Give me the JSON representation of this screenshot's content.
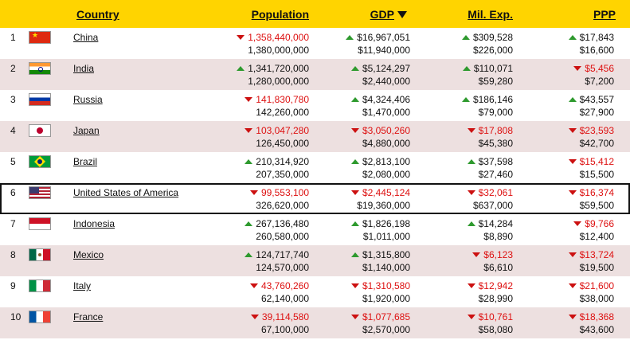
{
  "header": {
    "country": "Country",
    "population": "Population",
    "gdp": "GDP",
    "mil_exp": "Mil. Exp.",
    "ppp": "PPP"
  },
  "colors": {
    "header_bg": "#ffd400",
    "alt_row_bg": "#ede0e0",
    "up_arrow": "#2e9a2e",
    "down_value": "#dd1111"
  },
  "rows": [
    {
      "rank": "1",
      "flag": "china-flag-icon",
      "name": "China",
      "pop": {
        "dir": "down",
        "top": "1,358,440,000",
        "bottom": "1,380,000,000"
      },
      "gdp": {
        "dir": "up",
        "top": "$16,967,051",
        "bottom": "$11,940,000"
      },
      "mil": {
        "dir": "up",
        "top": "$309,528",
        "bottom": "$226,000"
      },
      "ppp": {
        "dir": "up",
        "top": "$17,843",
        "bottom": "$16,600"
      }
    },
    {
      "rank": "2",
      "flag": "india-flag-icon",
      "name": "India",
      "pop": {
        "dir": "up",
        "top": "1,341,720,000",
        "bottom": "1,280,000,000"
      },
      "gdp": {
        "dir": "up",
        "top": "$5,124,297",
        "bottom": "$2,440,000"
      },
      "mil": {
        "dir": "up",
        "top": "$110,071",
        "bottom": "$59,280"
      },
      "ppp": {
        "dir": "down",
        "top": "$5,456",
        "bottom": "$7,200"
      }
    },
    {
      "rank": "3",
      "flag": "russia-flag-icon",
      "name": "Russia",
      "pop": {
        "dir": "down",
        "top": "141,830,780",
        "bottom": "142,260,000"
      },
      "gdp": {
        "dir": "up",
        "top": "$4,324,406",
        "bottom": "$1,470,000"
      },
      "mil": {
        "dir": "up",
        "top": "$186,146",
        "bottom": "$79,000"
      },
      "ppp": {
        "dir": "up",
        "top": "$43,557",
        "bottom": "$27,900"
      }
    },
    {
      "rank": "4",
      "flag": "japan-flag-icon",
      "name": "Japan",
      "pop": {
        "dir": "down",
        "top": "103,047,280",
        "bottom": "126,450,000"
      },
      "gdp": {
        "dir": "down",
        "top": "$3,050,260",
        "bottom": "$4,880,000"
      },
      "mil": {
        "dir": "down",
        "top": "$17,808",
        "bottom": "$45,380"
      },
      "ppp": {
        "dir": "down",
        "top": "$23,593",
        "bottom": "$42,700"
      }
    },
    {
      "rank": "5",
      "flag": "brazil-flag-icon",
      "name": "Brazil",
      "pop": {
        "dir": "up",
        "top": "210,314,920",
        "bottom": "207,350,000"
      },
      "gdp": {
        "dir": "up",
        "top": "$2,813,100",
        "bottom": "$2,080,000"
      },
      "mil": {
        "dir": "up",
        "top": "$37,598",
        "bottom": "$27,460"
      },
      "ppp": {
        "dir": "down",
        "top": "$15,412",
        "bottom": "$15,500"
      }
    },
    {
      "rank": "6",
      "flag": "usa-flag-icon",
      "name": "United States of America",
      "pop": {
        "dir": "down",
        "top": "99,553,100",
        "bottom": "326,620,000"
      },
      "gdp": {
        "dir": "down",
        "top": "$2,445,124",
        "bottom": "$19,360,000"
      },
      "mil": {
        "dir": "down",
        "top": "$32,061",
        "bottom": "$637,000"
      },
      "ppp": {
        "dir": "down",
        "top": "$16,374",
        "bottom": "$59,500"
      }
    },
    {
      "rank": "7",
      "flag": "indonesia-flag-icon",
      "name": "Indonesia",
      "pop": {
        "dir": "up",
        "top": "267,136,480",
        "bottom": "260,580,000"
      },
      "gdp": {
        "dir": "up",
        "top": "$1,826,198",
        "bottom": "$1,011,000"
      },
      "mil": {
        "dir": "up",
        "top": "$14,284",
        "bottom": "$8,890"
      },
      "ppp": {
        "dir": "down",
        "top": "$9,766",
        "bottom": "$12,400"
      }
    },
    {
      "rank": "8",
      "flag": "mexico-flag-icon",
      "name": "Mexico",
      "pop": {
        "dir": "up",
        "top": "124,717,740",
        "bottom": "124,570,000"
      },
      "gdp": {
        "dir": "up",
        "top": "$1,315,800",
        "bottom": "$1,140,000"
      },
      "mil": {
        "dir": "down",
        "top": "$6,123",
        "bottom": "$6,610"
      },
      "ppp": {
        "dir": "down",
        "top": "$13,724",
        "bottom": "$19,500"
      }
    },
    {
      "rank": "9",
      "flag": "italy-flag-icon",
      "name": "Italy",
      "pop": {
        "dir": "down",
        "top": "43,760,260",
        "bottom": "62,140,000"
      },
      "gdp": {
        "dir": "down",
        "top": "$1,310,580",
        "bottom": "$1,920,000"
      },
      "mil": {
        "dir": "down",
        "top": "$12,942",
        "bottom": "$28,990"
      },
      "ppp": {
        "dir": "down",
        "top": "$21,600",
        "bottom": "$38,000"
      }
    },
    {
      "rank": "10",
      "flag": "france-flag-icon",
      "name": "France",
      "pop": {
        "dir": "down",
        "top": "39,114,580",
        "bottom": "67,100,000"
      },
      "gdp": {
        "dir": "down",
        "top": "$1,077,685",
        "bottom": "$2,570,000"
      },
      "mil": {
        "dir": "down",
        "top": "$10,761",
        "bottom": "$58,080"
      },
      "ppp": {
        "dir": "down",
        "top": "$18,368",
        "bottom": "$43,600"
      }
    }
  ]
}
